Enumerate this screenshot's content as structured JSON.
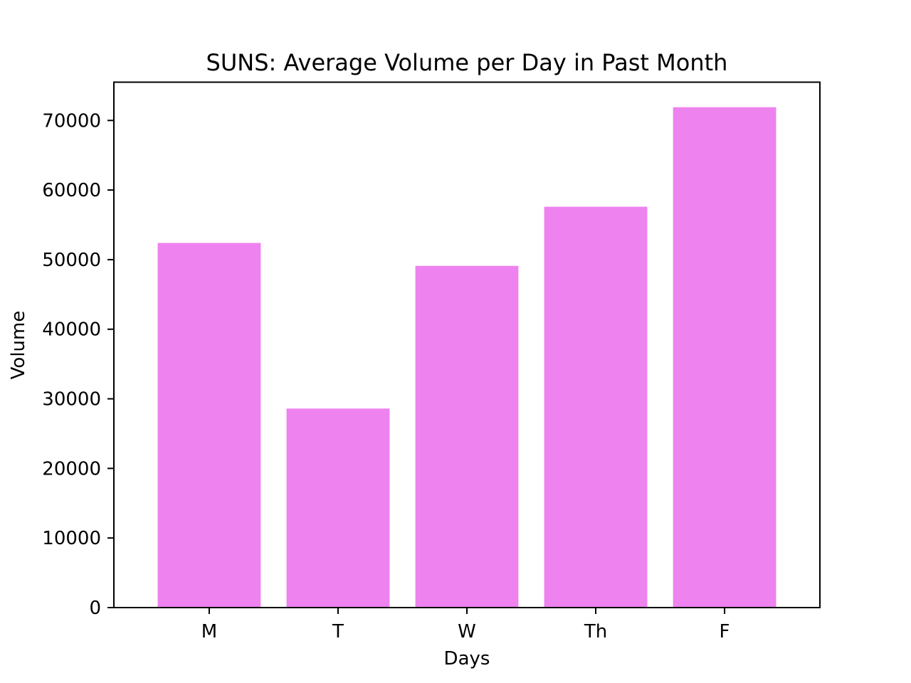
{
  "chart_data": {
    "type": "bar",
    "title": "SUNS: Average Volume per Day in Past Month",
    "xlabel": "Days",
    "ylabel": "Volume",
    "categories": [
      "M",
      "T",
      "W",
      "Th",
      "F"
    ],
    "values": [
      52400,
      28600,
      49100,
      57600,
      71900
    ],
    "ylim": [
      0,
      75500
    ],
    "yticks": [
      0,
      10000,
      20000,
      30000,
      40000,
      50000,
      60000,
      70000
    ],
    "bar_color": "#ee82ee",
    "grid": false,
    "legend": "none"
  }
}
